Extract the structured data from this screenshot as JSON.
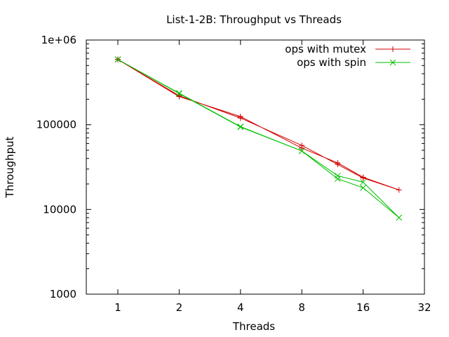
{
  "chart_data": {
    "type": "line",
    "title": "List-1-2B: Throughput vs Threads",
    "xlabel": "Threads",
    "ylabel": "Throughput",
    "x_scale": "log2",
    "y_scale": "log10",
    "xlim": [
      0.7,
      32
    ],
    "ylim": [
      1000,
      1000000
    ],
    "xticks": [
      1,
      2,
      4,
      8,
      16,
      32
    ],
    "xtick_labels": [
      "1",
      "2",
      "4",
      "8",
      "16",
      "32"
    ],
    "yticks": [
      1000,
      10000,
      100000,
      1000000
    ],
    "ytick_labels": [
      "1000",
      "10000",
      "100000",
      "1e+06"
    ],
    "grid": false,
    "legend_position": "top-right",
    "series": [
      {
        "name": "ops with mutex",
        "color": "#d40000",
        "marker": "plus",
        "x": [
          1,
          2,
          4,
          8,
          12,
          16,
          24,
          16,
          12,
          8,
          4,
          2,
          1
        ],
        "y": [
          590000,
          220000,
          120000,
          57000,
          34000,
          23500,
          17000,
          24000,
          35500,
          53000,
          125000,
          215000,
          590000
        ]
      },
      {
        "name": "ops with spin",
        "color": "#00c000",
        "marker": "cross",
        "x": [
          1,
          2,
          4,
          8,
          12,
          16,
          24,
          16,
          12,
          8,
          4,
          2,
          1
        ],
        "y": [
          590000,
          233000,
          94000,
          49000,
          25000,
          21000,
          8000,
          18000,
          23000,
          49000,
          95000,
          236000,
          590000
        ]
      }
    ]
  }
}
